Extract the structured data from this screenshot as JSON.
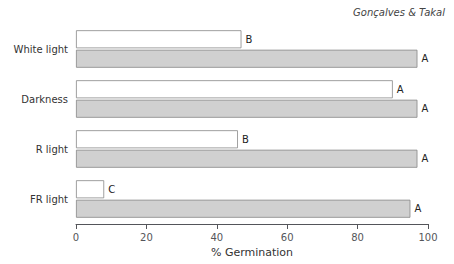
{
  "chart_data": {
    "type": "bar",
    "orientation": "horizontal",
    "xlabel": "% Germination",
    "categories": [
      "White light",
      "Darkness",
      "R light",
      "FR light"
    ],
    "series": [
      {
        "color": "#ffffff",
        "values": [
          47,
          90,
          46,
          8
        ],
        "value_labels": [
          "B",
          "A",
          "B",
          "C"
        ]
      },
      {
        "color": "#d0d0d0",
        "values": [
          97,
          97,
          97,
          95
        ],
        "value_labels": [
          "A",
          "A",
          "A",
          "A"
        ]
      }
    ],
    "xlim": [
      0,
      100
    ],
    "xticks": [
      0,
      20,
      40,
      60,
      80,
      100
    ],
    "grid": false,
    "annotations": [
      {
        "text": "Gonçalves & Takal"
      }
    ]
  }
}
